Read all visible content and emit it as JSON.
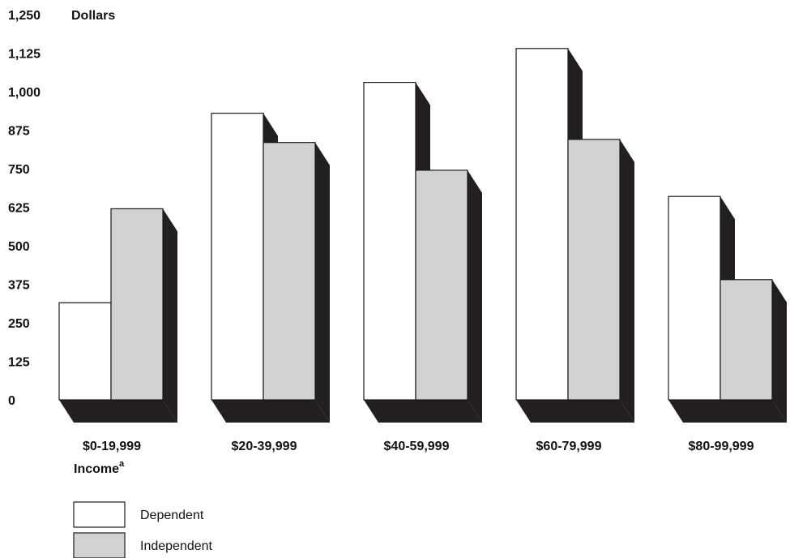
{
  "chart_data": {
    "type": "bar",
    "ylabel": "Dollars",
    "xlabel": "Income",
    "xlabel_superscript": "a",
    "yticks": [
      "0",
      "125",
      "250",
      "375",
      "500",
      "625",
      "750",
      "875",
      "1,000",
      "1,125",
      "1,250"
    ],
    "ylim": [
      0,
      1250
    ],
    "categories": [
      "$0-19,999",
      "$20-39,999",
      "$40-59,999",
      "$60-79,999",
      "$80-99,999"
    ],
    "series": [
      {
        "name": "Dependent",
        "values": [
          315,
          930,
          1030,
          1140,
          660
        ]
      },
      {
        "name": "Independent",
        "values": [
          620,
          835,
          745,
          845,
          390
        ]
      }
    ],
    "grid": false,
    "legend": "bottom-left",
    "colors": {
      "Dependent": "#ffffff",
      "Independent": "#d0d2d4",
      "shadow": "#231f20",
      "outline": "#1a1a1a"
    }
  }
}
